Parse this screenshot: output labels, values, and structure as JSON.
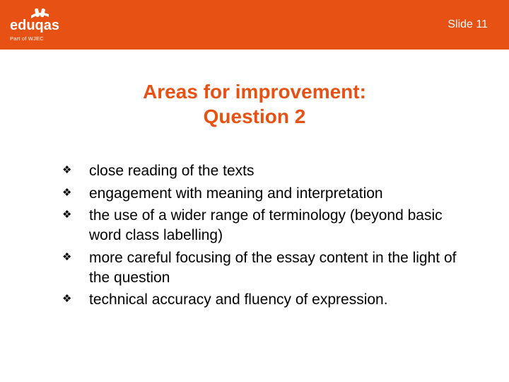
{
  "colors": {
    "brand_orange": "#e75113",
    "title_color": "#e75113",
    "white": "#ffffff",
    "text_black": "#000000"
  },
  "header": {
    "slide_label": "Slide 11",
    "logo_text": "eduqas",
    "logo_subtext": "Part of WJEC"
  },
  "title": {
    "line1": "Areas for improvement:",
    "line2": "Question 2"
  },
  "bullets": [
    {
      "text": "close reading of the texts"
    },
    {
      "text": "engagement with meaning and interpretation"
    },
    {
      "text": "the use of a wider range of terminology (beyond basic word class labelling)"
    },
    {
      "text": "more careful focusing of the essay content in the light of the question"
    },
    {
      "text": "technical accuracy and fluency of expression."
    }
  ],
  "bullet_glyph": "❖"
}
